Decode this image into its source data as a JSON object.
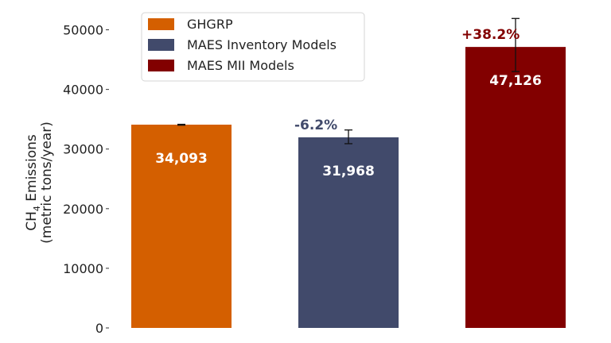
{
  "chart_data": {
    "type": "bar",
    "title": "",
    "xlabel": "",
    "ylabel_parts": [
      "CH",
      "4",
      " Emissions"
    ],
    "ylabel_line2": "(metric tons/year)",
    "ylim": [
      0,
      55000
    ],
    "yticks": [
      0,
      10000,
      20000,
      30000,
      40000,
      50000
    ],
    "ytick_labels": [
      "0",
      "10000",
      "20000",
      "30000",
      "40000",
      "50000"
    ],
    "grid": false,
    "legend_position": "top-left",
    "series": [
      {
        "name": "GHGRP",
        "value": 34093,
        "label": "34,093",
        "color": "#D45F00",
        "err_low": 34000,
        "err_high": 34150,
        "pct": ""
      },
      {
        "name": "MAES Inventory Models",
        "value": 31968,
        "label": "31,968",
        "color": "#414A6B",
        "err_low": 30900,
        "err_high": 33200,
        "pct": "-6.2%"
      },
      {
        "name": "MAES MII Models",
        "value": 47126,
        "label": "47,126",
        "color": "#820000",
        "err_low": 43000,
        "err_high": 51900,
        "pct": "+38.2%"
      }
    ]
  }
}
